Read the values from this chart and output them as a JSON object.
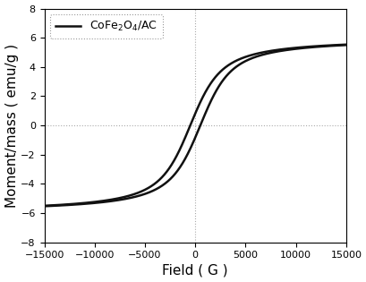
{
  "xlim": [
    -15000,
    15000
  ],
  "ylim": [
    -8,
    8
  ],
  "xticks": [
    -15000,
    -10000,
    -5000,
    0,
    5000,
    10000,
    15000
  ],
  "yticks": [
    -8,
    -6,
    -4,
    -2,
    0,
    2,
    4,
    6,
    8
  ],
  "saturation": 6.0,
  "a_param": 1200,
  "coercivity": 500,
  "legend_label": "CoFe$_2$O$_4$/AC",
  "line_color": "#111111",
  "line_width": 1.8,
  "background_color": "#ffffff",
  "grid_color": "#aaaaaa",
  "grid_style": ":",
  "legend_fontsize": 9,
  "axis_fontsize": 11,
  "tick_fontsize": 8,
  "xlabel": "Field （G）",
  "ylabel": "Moment/mass （emu/g）"
}
